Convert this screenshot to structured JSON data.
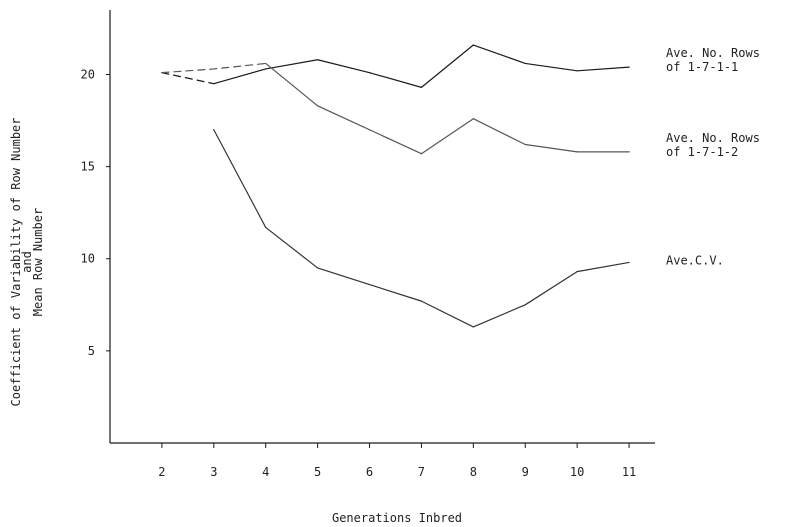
{
  "chart_data": {
    "type": "line",
    "xlabel": "Generations Inbred",
    "ylabel_lines": [
      "Coefficient of Variability of Row Number",
      "and",
      "Mean Row Number"
    ],
    "categories": [
      2,
      3,
      4,
      5,
      6,
      7,
      8,
      9,
      10,
      11
    ],
    "x_tick_labels": [
      "2",
      "3",
      "4",
      "5",
      "6",
      "7",
      "8",
      "9",
      "10",
      "11"
    ],
    "y_ticks": [
      5,
      10,
      15,
      20
    ],
    "y_tick_labels": [
      "5",
      "10",
      "15",
      "20"
    ],
    "ylim": [
      0,
      23.5
    ],
    "xlim": [
      1,
      11.5
    ],
    "grid": false,
    "series": [
      {
        "label_lines": [
          "Ave. No. Rows",
          "of 1-7-1-1"
        ],
        "color": "#1a1a1a",
        "x": [
          2,
          3,
          4,
          5,
          6,
          7,
          8,
          9,
          10,
          11
        ],
        "values": [
          20.1,
          19.5,
          20.3,
          20.8,
          20.1,
          19.3,
          21.6,
          20.6,
          20.2,
          20.4
        ],
        "dashed_until_x": 3
      },
      {
        "label_lines": [
          "Ave. No. Rows",
          "of 1-7-1-2"
        ],
        "color": "#555555",
        "x": [
          2,
          3,
          4,
          5,
          6,
          7,
          8,
          9,
          10,
          11
        ],
        "values": [
          20.1,
          20.3,
          20.6,
          18.3,
          17.0,
          15.7,
          17.6,
          16.2,
          15.8,
          15.8
        ],
        "dashed_until_x": 4
      },
      {
        "label_lines": [
          "Ave.C.V."
        ],
        "color": "#333333",
        "x": [
          3,
          4,
          5,
          6,
          7,
          8,
          9,
          10,
          11
        ],
        "values": [
          17.0,
          11.7,
          9.5,
          8.6,
          7.7,
          6.3,
          7.5,
          9.3,
          9.8
        ],
        "dashed_until_x": null
      }
    ]
  }
}
